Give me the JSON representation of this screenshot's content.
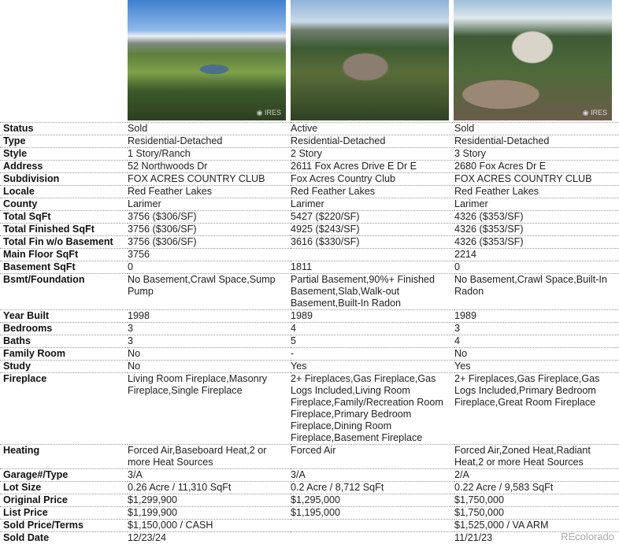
{
  "photos": [
    {
      "alt": "Property 1 photo",
      "watermark": "IRES"
    },
    {
      "alt": "Property 2 photo",
      "watermark": ""
    },
    {
      "alt": "Property 3 photo",
      "watermark": "IRES"
    }
  ],
  "rows": [
    {
      "label": "Status",
      "values": [
        "Sold",
        "Active",
        "Sold"
      ]
    },
    {
      "label": "Type",
      "values": [
        "Residential-Detached",
        "Residential-Detached",
        "Residential-Detached"
      ]
    },
    {
      "label": "Style",
      "values": [
        "1 Story/Ranch",
        "2 Story",
        "3 Story"
      ]
    },
    {
      "label": "Address",
      "values": [
        "52 Northwoods Dr",
        "2611 Fox Acres Drive E Dr E",
        "2680 Fox Acres Dr E"
      ]
    },
    {
      "label": "Subdivision",
      "values": [
        "FOX ACRES COUNTRY CLUB",
        "Fox Acres Country Club",
        "FOX ACRES COUNTRY CLUB"
      ]
    },
    {
      "label": "Locale",
      "values": [
        "Red Feather Lakes",
        "Red Feather Lakes",
        "Red Feather Lakes"
      ]
    },
    {
      "label": "County",
      "values": [
        "Larimer",
        "Larimer",
        "Larimer"
      ]
    },
    {
      "label": "Total SqFt",
      "values": [
        "3756 ($306/SF)",
        "5427 ($220/SF)",
        "4326 ($353/SF)"
      ]
    },
    {
      "label": "Total Finished SqFt",
      "values": [
        "3756 ($306/SF)",
        "4925 ($243/SF)",
        "4326 ($353/SF)"
      ]
    },
    {
      "label": "Total Fin w/o Basement",
      "values": [
        "3756 ($306/SF)",
        "3616 ($330/SF)",
        "4326 ($353/SF)"
      ]
    },
    {
      "label": "Main Floor SqFt",
      "values": [
        "3756",
        "",
        "2214"
      ]
    },
    {
      "label": "Basement SqFt",
      "values": [
        "0",
        "1811",
        "0"
      ]
    },
    {
      "label": "Bsmt/Foundation",
      "values": [
        "No Basement,Crawl Space,Sump Pump",
        "Partial Basement,90%+ Finished Basement,Slab,Walk-out Basement,Built-In Radon",
        "No Basement,Crawl Space,Built-In Radon"
      ]
    },
    {
      "label": "Year Built",
      "values": [
        "1998",
        "1989",
        "1989"
      ]
    },
    {
      "label": "Bedrooms",
      "values": [
        "3",
        "4",
        "3"
      ]
    },
    {
      "label": "Baths",
      "values": [
        "3",
        "5",
        "4"
      ]
    },
    {
      "label": "Family Room",
      "values": [
        "No",
        "-",
        "No"
      ]
    },
    {
      "label": "Study",
      "values": [
        "No",
        "Yes",
        "Yes"
      ]
    },
    {
      "label": "Fireplace",
      "values": [
        "Living Room Fireplace,Masonry Fireplace,Single Fireplace",
        "2+ Fireplaces,Gas Fireplace,Gas Logs Included,Living Room Fireplace,Family/Recreation Room Fireplace,Primary Bedroom Fireplace,Dining Room Fireplace,Basement Fireplace",
        "2+ Fireplaces,Gas Fireplace,Gas Logs Included,Primary Bedroom Fireplace,Great Room Fireplace"
      ]
    },
    {
      "label": "Heating",
      "values": [
        "Forced Air,Baseboard Heat,2 or more Heat Sources",
        "Forced Air",
        "Forced Air,Zoned Heat,Radiant Heat,2 or more Heat Sources"
      ]
    },
    {
      "label": "Garage#/Type",
      "values": [
        "3/A",
        "3/A",
        "2/A"
      ]
    },
    {
      "label": "Lot Size",
      "values": [
        "0.26 Acre / 11,310 SqFt",
        "0.2 Acre / 8,712 SqFt",
        "0.22 Acre / 9,583 SqFt"
      ]
    },
    {
      "label": "Original Price",
      "values": [
        "$1,299,900",
        "$1,295,000",
        "$1,750,000"
      ]
    },
    {
      "label": "List Price",
      "values": [
        "$1,199,900",
        "$1,195,000",
        "$1,750,000"
      ]
    },
    {
      "label": "Sold Price/Terms",
      "values": [
        "$1,150,000 / CASH",
        "",
        "$1,525,000 / VA ARM"
      ]
    },
    {
      "label": "Sold Date",
      "values": [
        "12/23/24",
        "",
        "11/21/23"
      ]
    }
  ],
  "brand": "REcolorado"
}
